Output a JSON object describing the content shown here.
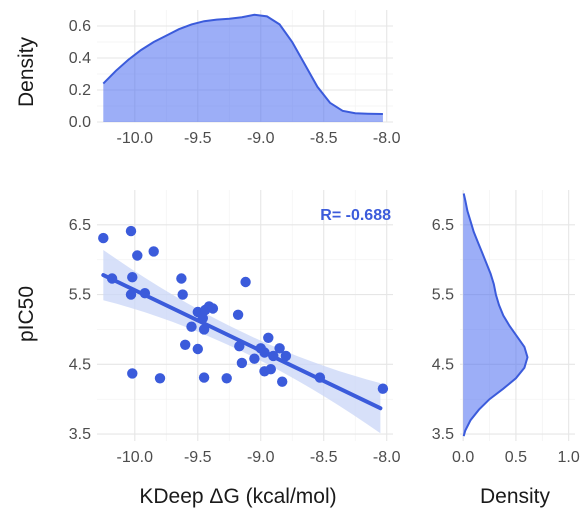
{
  "colors": {
    "accent": "#3b5bdb",
    "fill": "#4a6cf0",
    "band": "#c9d6f7",
    "grid": "#e6e6e6"
  },
  "chart_data": [
    {
      "id": "top-density",
      "type": "area",
      "xlabel": "",
      "ylabel": "Density",
      "xlim": [
        -10.3,
        -7.95
      ],
      "ylim": [
        0,
        0.7
      ],
      "x_ticks": [
        "-10.0",
        "-9.5",
        "-9.0",
        "-8.5",
        "-8.0"
      ],
      "x_tick_values": [
        -10.0,
        -9.5,
        -9.0,
        -8.5,
        -8.0
      ],
      "y_ticks": [
        "0.0",
        "0.2",
        "0.4",
        "0.6"
      ],
      "y_tick_values": [
        0.0,
        0.2,
        0.4,
        0.6
      ],
      "grid": true,
      "x": [
        -10.25,
        -10.15,
        -10.05,
        -9.95,
        -9.85,
        -9.75,
        -9.65,
        -9.55,
        -9.45,
        -9.35,
        -9.25,
        -9.15,
        -9.05,
        -8.95,
        -8.85,
        -8.75,
        -8.65,
        -8.55,
        -8.45,
        -8.35,
        -8.25,
        -8.15,
        -8.03
      ],
      "y": [
        0.24,
        0.32,
        0.39,
        0.45,
        0.5,
        0.54,
        0.58,
        0.61,
        0.63,
        0.64,
        0.645,
        0.655,
        0.67,
        0.66,
        0.61,
        0.5,
        0.36,
        0.22,
        0.12,
        0.07,
        0.055,
        0.052,
        0.05
      ]
    },
    {
      "id": "scatter",
      "type": "scatter",
      "xlabel": "KDeep ΔG (kcal/mol)",
      "ylabel": "pIC50",
      "xlim": [
        -10.3,
        -7.95
      ],
      "ylim": [
        3.4,
        7.0
      ],
      "x_ticks": [
        "-10.0",
        "-9.5",
        "-9.0",
        "-8.5",
        "-8.0"
      ],
      "x_tick_values": [
        -10.0,
        -9.5,
        -9.0,
        -8.5,
        -8.0
      ],
      "y_ticks": [
        "3.5",
        "4.5",
        "5.5",
        "6.5"
      ],
      "y_tick_values": [
        3.5,
        4.5,
        5.5,
        6.5
      ],
      "grid": true,
      "annotation": "R= -0.688",
      "regression": {
        "x": [
          -10.25,
          -8.05
        ],
        "y": [
          5.78,
          3.87
        ]
      },
      "points": [
        [
          -10.25,
          6.31
        ],
        [
          -10.18,
          5.73
        ],
        [
          -10.03,
          6.41
        ],
        [
          -9.98,
          6.06
        ],
        [
          -9.85,
          6.12
        ],
        [
          -10.03,
          5.5
        ],
        [
          -9.92,
          5.52
        ],
        [
          -10.02,
          5.75
        ],
        [
          -9.63,
          5.73
        ],
        [
          -9.62,
          5.5
        ],
        [
          -9.5,
          5.25
        ],
        [
          -9.44,
          5.28
        ],
        [
          -9.41,
          5.33
        ],
        [
          -9.38,
          5.3
        ],
        [
          -9.46,
          5.16
        ],
        [
          -9.55,
          5.04
        ],
        [
          -9.45,
          5.0
        ],
        [
          -9.6,
          4.78
        ],
        [
          -9.5,
          4.72
        ],
        [
          -9.18,
          5.21
        ],
        [
          -9.12,
          5.68
        ],
        [
          -10.02,
          4.37
        ],
        [
          -9.8,
          4.3
        ],
        [
          -9.45,
          4.31
        ],
        [
          -9.27,
          4.3
        ],
        [
          -9.17,
          4.76
        ],
        [
          -9.15,
          4.52
        ],
        [
          -9.05,
          4.58
        ],
        [
          -9.0,
          4.73
        ],
        [
          -8.97,
          4.67
        ],
        [
          -8.94,
          4.88
        ],
        [
          -8.9,
          4.62
        ],
        [
          -8.85,
          4.73
        ],
        [
          -8.8,
          4.62
        ],
        [
          -8.97,
          4.4
        ],
        [
          -8.92,
          4.43
        ],
        [
          -8.83,
          4.25
        ],
        [
          -8.53,
          4.31
        ],
        [
          -8.03,
          4.15
        ]
      ]
    },
    {
      "id": "right-density",
      "type": "area",
      "xlabel": "Density",
      "ylabel": "",
      "xlim": [
        -0.03,
        1.06
      ],
      "ylim": [
        3.4,
        7.0
      ],
      "x_ticks": [
        "0.0",
        "0.5",
        "1.0"
      ],
      "x_tick_values": [
        0.0,
        0.5,
        1.0
      ],
      "y_ticks": [
        "3.5",
        "4.5",
        "5.5",
        "6.5"
      ],
      "y_tick_values": [
        3.5,
        4.5,
        5.5,
        6.5
      ],
      "grid": true,
      "y": [
        3.47,
        3.55,
        3.7,
        3.85,
        4.0,
        4.15,
        4.3,
        4.45,
        4.6,
        4.75,
        4.9,
        5.05,
        5.2,
        5.35,
        5.5,
        5.65,
        5.8,
        5.95,
        6.1,
        6.25,
        6.4,
        6.55,
        6.7,
        6.85,
        6.95
      ],
      "x": [
        0.005,
        0.02,
        0.07,
        0.15,
        0.25,
        0.38,
        0.5,
        0.58,
        0.61,
        0.58,
        0.51,
        0.44,
        0.38,
        0.34,
        0.31,
        0.29,
        0.26,
        0.22,
        0.18,
        0.14,
        0.1,
        0.07,
        0.04,
        0.02,
        0.005
      ]
    }
  ]
}
